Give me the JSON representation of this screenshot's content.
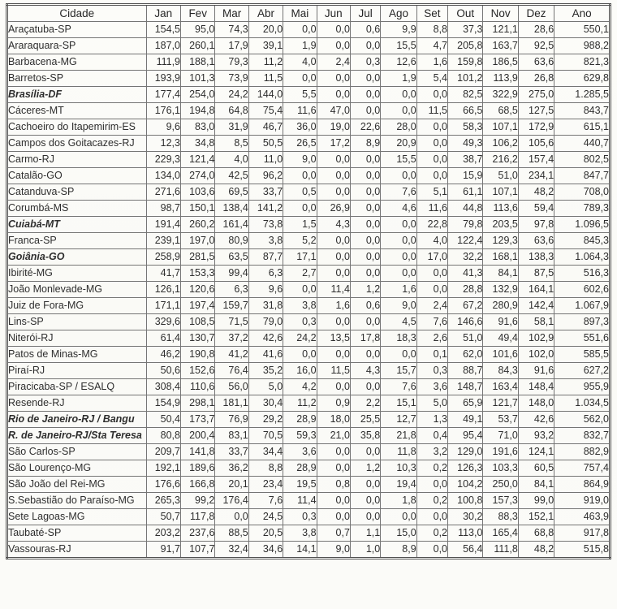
{
  "table": {
    "columns": [
      "Cidade",
      "Jan",
      "Fev",
      "Mar",
      "Abr",
      "Mai",
      "Jun",
      "Jul",
      "Ago",
      "Set",
      "Out",
      "Nov",
      "Dez",
      "Ano"
    ],
    "rows": [
      {
        "city": "Araçatuba-SP",
        "emphasis": false,
        "values": [
          "154,5",
          "95,0",
          "74,3",
          "20,0",
          "0,0",
          "0,0",
          "0,6",
          "9,9",
          "8,8",
          "37,3",
          "121,1",
          "28,6"
        ],
        "ano": "550,1"
      },
      {
        "city": "Araraquara-SP",
        "emphasis": false,
        "values": [
          "187,0",
          "260,1",
          "17,9",
          "39,1",
          "1,9",
          "0,0",
          "0,0",
          "15,5",
          "4,7",
          "205,8",
          "163,7",
          "92,5"
        ],
        "ano": "988,2"
      },
      {
        "city": "Barbacena-MG",
        "emphasis": false,
        "values": [
          "111,9",
          "188,1",
          "79,3",
          "11,2",
          "4,0",
          "2,4",
          "0,3",
          "12,6",
          "1,6",
          "159,8",
          "186,5",
          "63,6"
        ],
        "ano": "821,3"
      },
      {
        "city": "Barretos-SP",
        "emphasis": false,
        "values": [
          "193,9",
          "101,3",
          "73,9",
          "11,5",
          "0,0",
          "0,0",
          "0,0",
          "1,9",
          "5,4",
          "101,2",
          "113,9",
          "26,8"
        ],
        "ano": "629,8"
      },
      {
        "city": "Brasília-DF",
        "emphasis": true,
        "values": [
          "177,4",
          "254,0",
          "24,2",
          "144,0",
          "5,5",
          "0,0",
          "0,0",
          "0,0",
          "0,0",
          "82,5",
          "322,9",
          "275,0"
        ],
        "ano": "1.285,5"
      },
      {
        "city": "Cáceres-MT",
        "emphasis": false,
        "values": [
          "176,1",
          "194,8",
          "64,8",
          "75,4",
          "11,6",
          "47,0",
          "0,0",
          "0,0",
          "11,5",
          "66,5",
          "68,5",
          "127,5"
        ],
        "ano": "843,7"
      },
      {
        "city": "Cachoeiro do Itapemirim-ES",
        "emphasis": false,
        "values": [
          "9,6",
          "83,0",
          "31,9",
          "46,7",
          "36,0",
          "19,0",
          "22,6",
          "28,0",
          "0,0",
          "58,3",
          "107,1",
          "172,9"
        ],
        "ano": "615,1"
      },
      {
        "city": "Campos dos Goitacazes-RJ",
        "emphasis": false,
        "values": [
          "12,3",
          "34,8",
          "8,5",
          "50,5",
          "26,5",
          "17,2",
          "8,9",
          "20,9",
          "0,0",
          "49,3",
          "106,2",
          "105,6"
        ],
        "ano": "440,7"
      },
      {
        "city": "Carmo-RJ",
        "emphasis": false,
        "values": [
          "229,3",
          "121,4",
          "4,0",
          "11,0",
          "9,0",
          "0,0",
          "0,0",
          "15,5",
          "0,0",
          "38,7",
          "216,2",
          "157,4"
        ],
        "ano": "802,5"
      },
      {
        "city": "Catalão-GO",
        "emphasis": false,
        "values": [
          "134,0",
          "274,0",
          "42,5",
          "96,2",
          "0,0",
          "0,0",
          "0,0",
          "0,0",
          "0,0",
          "15,9",
          "51,0",
          "234,1"
        ],
        "ano": "847,7"
      },
      {
        "city": "Catanduva-SP",
        "emphasis": false,
        "values": [
          "271,6",
          "103,6",
          "69,5",
          "33,7",
          "0,5",
          "0,0",
          "0,0",
          "7,6",
          "5,1",
          "61,1",
          "107,1",
          "48,2"
        ],
        "ano": "708,0"
      },
      {
        "city": "Corumbá-MS",
        "emphasis": false,
        "values": [
          "98,7",
          "150,1",
          "138,4",
          "141,2",
          "0,0",
          "26,9",
          "0,0",
          "4,6",
          "11,6",
          "44,8",
          "113,6",
          "59,4"
        ],
        "ano": "789,3"
      },
      {
        "city": "Cuiabá-MT",
        "emphasis": true,
        "values": [
          "191,4",
          "260,2",
          "161,4",
          "73,8",
          "1,5",
          "4,3",
          "0,0",
          "0,0",
          "22,8",
          "79,8",
          "203,5",
          "97,8"
        ],
        "ano": "1.096,5"
      },
      {
        "city": "Franca-SP",
        "emphasis": false,
        "values": [
          "239,1",
          "197,0",
          "80,9",
          "3,8",
          "5,2",
          "0,0",
          "0,0",
          "0,0",
          "4,0",
          "122,4",
          "129,3",
          "63,6"
        ],
        "ano": "845,3"
      },
      {
        "city": "Goiânia-GO",
        "emphasis": true,
        "values": [
          "258,9",
          "281,5",
          "63,5",
          "87,7",
          "17,1",
          "0,0",
          "0,0",
          "0,0",
          "17,0",
          "32,2",
          "168,1",
          "138,3"
        ],
        "ano": "1.064,3"
      },
      {
        "city": "Ibirité-MG",
        "emphasis": false,
        "values": [
          "41,7",
          "153,3",
          "99,4",
          "6,3",
          "2,7",
          "0,0",
          "0,0",
          "0,0",
          "0,0",
          "41,3",
          "84,1",
          "87,5"
        ],
        "ano": "516,3"
      },
      {
        "city": "João Monlevade-MG",
        "emphasis": false,
        "values": [
          "126,1",
          "120,6",
          "6,3",
          "9,6",
          "0,0",
          "11,4",
          "1,2",
          "1,6",
          "0,0",
          "28,8",
          "132,9",
          "164,1"
        ],
        "ano": "602,6"
      },
      {
        "city": "Juiz de Fora-MG",
        "emphasis": false,
        "values": [
          "171,1",
          "197,4",
          "159,7",
          "31,8",
          "3,8",
          "1,6",
          "0,6",
          "9,0",
          "2,4",
          "67,2",
          "280,9",
          "142,4"
        ],
        "ano": "1.067,9"
      },
      {
        "city": "Lins-SP",
        "emphasis": false,
        "values": [
          "329,6",
          "108,5",
          "71,5",
          "79,0",
          "0,3",
          "0,0",
          "0,0",
          "4,5",
          "7,6",
          "146,6",
          "91,6",
          "58,1"
        ],
        "ano": "897,3"
      },
      {
        "city": "Niterói-RJ",
        "emphasis": false,
        "values": [
          "61,4",
          "130,7",
          "37,2",
          "42,6",
          "24,2",
          "13,5",
          "17,8",
          "18,3",
          "2,6",
          "51,0",
          "49,4",
          "102,9"
        ],
        "ano": "551,6"
      },
      {
        "city": "Patos de Minas-MG",
        "emphasis": false,
        "values": [
          "46,2",
          "190,8",
          "41,2",
          "41,6",
          "0,0",
          "0,0",
          "0,0",
          "0,0",
          "0,1",
          "62,0",
          "101,6",
          "102,0"
        ],
        "ano": "585,5"
      },
      {
        "city": "Piraí-RJ",
        "emphasis": false,
        "values": [
          "50,6",
          "152,6",
          "76,4",
          "35,2",
          "16,0",
          "11,5",
          "4,3",
          "15,7",
          "0,3",
          "88,7",
          "84,3",
          "91,6"
        ],
        "ano": "627,2"
      },
      {
        "city": "Piracicaba-SP / ESALQ",
        "emphasis": false,
        "values": [
          "308,4",
          "110,6",
          "56,0",
          "5,0",
          "4,2",
          "0,0",
          "0,0",
          "7,6",
          "3,6",
          "148,7",
          "163,4",
          "148,4"
        ],
        "ano": "955,9"
      },
      {
        "city": "Resende-RJ",
        "emphasis": false,
        "values": [
          "154,9",
          "298,1",
          "181,1",
          "30,4",
          "11,2",
          "0,9",
          "2,2",
          "15,1",
          "5,0",
          "65,9",
          "121,7",
          "148,0"
        ],
        "ano": "1.034,5"
      },
      {
        "city": "Rio de Janeiro-RJ / Bangu",
        "emphasis": true,
        "values": [
          "50,4",
          "173,7",
          "76,9",
          "29,2",
          "28,9",
          "18,0",
          "25,5",
          "12,7",
          "1,3",
          "49,1",
          "53,7",
          "42,6"
        ],
        "ano": "562,0"
      },
      {
        "city": "R. de Janeiro-RJ/Sta Teresa",
        "emphasis": true,
        "values": [
          "80,8",
          "200,4",
          "83,1",
          "70,5",
          "59,3",
          "21,0",
          "35,8",
          "21,8",
          "0,4",
          "95,4",
          "71,0",
          "93,2"
        ],
        "ano": "832,7"
      },
      {
        "city": "São Carlos-SP",
        "emphasis": false,
        "values": [
          "209,7",
          "141,8",
          "33,7",
          "34,4",
          "3,6",
          "0,0",
          "0,0",
          "11,8",
          "3,2",
          "129,0",
          "191,6",
          "124,1"
        ],
        "ano": "882,9"
      },
      {
        "city": "São Lourenço-MG",
        "emphasis": false,
        "values": [
          "192,1",
          "189,6",
          "36,2",
          "8,8",
          "28,9",
          "0,0",
          "1,2",
          "10,3",
          "0,2",
          "126,3",
          "103,3",
          "60,5"
        ],
        "ano": "757,4"
      },
      {
        "city": "São João del Rei-MG",
        "emphasis": false,
        "values": [
          "176,6",
          "166,8",
          "20,1",
          "23,4",
          "19,5",
          "0,8",
          "0,0",
          "19,4",
          "0,0",
          "104,2",
          "250,0",
          "84,1"
        ],
        "ano": "864,9"
      },
      {
        "city": "S.Sebastião do Paraíso-MG",
        "emphasis": false,
        "values": [
          "265,3",
          "99,2",
          "176,4",
          "7,6",
          "11,4",
          "0,0",
          "0,0",
          "1,8",
          "0,2",
          "100,8",
          "157,3",
          "99,0"
        ],
        "ano": "919,0"
      },
      {
        "city": "Sete Lagoas-MG",
        "emphasis": false,
        "values": [
          "50,7",
          "117,8",
          "0,0",
          "24,5",
          "0,3",
          "0,0",
          "0,0",
          "0,0",
          "0,0",
          "30,2",
          "88,3",
          "152,1"
        ],
        "ano": "463,9"
      },
      {
        "city": "Taubaté-SP",
        "emphasis": false,
        "values": [
          "203,2",
          "237,6",
          "88,5",
          "20,5",
          "3,8",
          "0,7",
          "1,1",
          "15,0",
          "0,2",
          "113,0",
          "165,4",
          "68,8"
        ],
        "ano": "917,8"
      },
      {
        "city": "Vassouras-RJ",
        "emphasis": false,
        "values": [
          "91,7",
          "107,7",
          "32,4",
          "34,6",
          "14,1",
          "9,0",
          "1,0",
          "8,9",
          "0,0",
          "56,4",
          "111,8",
          "48,2"
        ],
        "ano": "515,8"
      }
    ]
  }
}
